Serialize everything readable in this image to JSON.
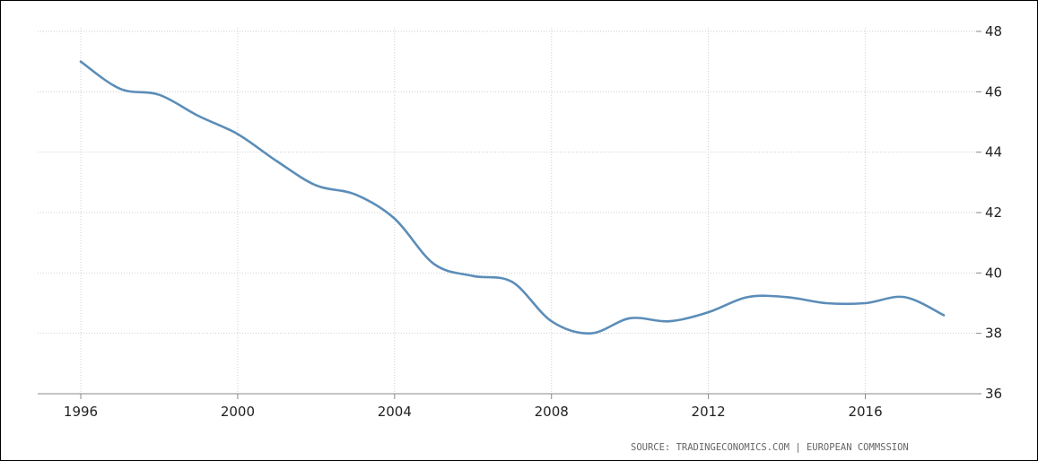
{
  "chart_data": {
    "type": "line",
    "title": "",
    "xlabel": "",
    "ylabel": "",
    "xlim": [
      1996,
      2018
    ],
    "ylim": [
      36,
      48
    ],
    "x_ticks": [
      1996,
      2000,
      2004,
      2008,
      2012,
      2016
    ],
    "y_ticks": [
      36,
      38,
      40,
      42,
      44,
      46,
      48
    ],
    "grid": true,
    "y_axis_side": "right",
    "series": [
      {
        "color": "#5b8db8",
        "x": [
          1996,
          1997,
          1998,
          1999,
          2000,
          2001,
          2002,
          2003,
          2004,
          2005,
          2006,
          2007,
          2008,
          2009,
          2010,
          2011,
          2012,
          2013,
          2014,
          2015,
          2016,
          2017,
          2018
        ],
        "y": [
          47.0,
          46.1,
          45.9,
          45.2,
          44.6,
          43.7,
          42.9,
          42.6,
          41.8,
          40.3,
          39.9,
          39.7,
          38.4,
          38.0,
          38.5,
          38.4,
          38.7,
          39.2,
          39.2,
          39.0,
          39.0,
          39.2,
          38.6
        ]
      }
    ]
  },
  "source_text": "SOURCE:  TRADINGECONOMICS.COM  |  EUROPEAN  COMMSSION"
}
